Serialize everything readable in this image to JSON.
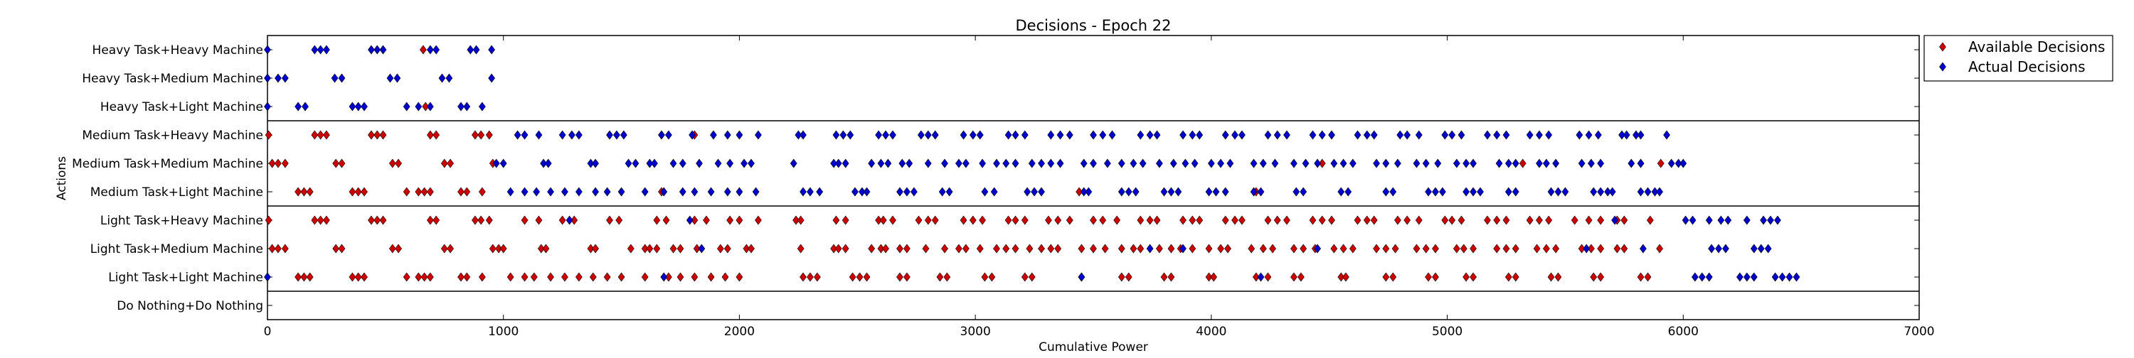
{
  "chart_data": {
    "type": "scatter",
    "title": "Decisions - Epoch 22",
    "xlabel": "Cumulative Power",
    "ylabel": "Actions",
    "xlim": [
      0,
      7000
    ],
    "xticks": [
      0,
      1000,
      2000,
      3000,
      4000,
      5000,
      6000,
      7000
    ],
    "categories": [
      "Heavy Task+Heavy Machine",
      "Heavy Task+Medium Machine",
      "Heavy Task+Light Machine",
      "Medium Task+Heavy Machine",
      "Medium Task+Medium Machine",
      "Medium Task+Light Machine",
      "Light Task+Heavy Machine",
      "Light Task+Medium Machine",
      "Light Task+Light Machine",
      "Do Nothing+Do Nothing"
    ],
    "group_separators_after": [
      2,
      5,
      8
    ],
    "grid": false,
    "legend_position": "upper-right-outside",
    "series": [
      {
        "name": "Available Decisions",
        "color": "#cc0000",
        "points": [
          {
            "cat": "Heavy Task+Heavy Machine",
            "x": [
              660
            ]
          },
          {
            "cat": "Heavy Task+Light Machine",
            "x": [
              670
            ]
          },
          {
            "cat": "Medium Task+Heavy Machine",
            "x": [
              5,
              200,
              225,
              250,
              440,
              465,
              490,
              690,
              715,
              880,
              905,
              940,
              1810
            ]
          },
          {
            "cat": "Medium Task+Medium Machine",
            "x": [
              20,
              45,
              75,
              290,
              315,
              530,
              555,
              750,
              775,
              955,
              4470,
              5320,
              5820,
              5905
            ]
          },
          {
            "cat": "Medium Task+Light Machine",
            "x": [
              130,
              155,
              180,
              360,
              385,
              410,
              590,
              640,
              665,
              690,
              820,
              845,
              910,
              1670,
              3440,
              4190
            ]
          },
          {
            "cat": "Light Task+Heavy Machine",
            "x": [
              5,
              200,
              225,
              250,
              440,
              465,
              490,
              690,
              715,
              880,
              905,
              940,
              1090,
              1150,
              1250,
              1300,
              1450,
              1490,
              1650,
              1690,
              1810,
              1860,
              1960,
              2000,
              2080,
              2240,
              2260,
              2410,
              2450,
              2590,
              2610,
              2650,
              2760,
              2800,
              2830,
              2950,
              2990,
              3030,
              3140,
              3170,
              3210,
              3310,
              3350,
              3400,
              3500,
              3540,
              3600,
              3700,
              3740,
              3770,
              3880,
              3920,
              3950,
              4060,
              4100,
              4130,
              4240,
              4280,
              4320,
              4430,
              4470,
              4510,
              4620,
              4660,
              4690,
              4790,
              4830,
              4880,
              4990,
              5020,
              5060,
              5170,
              5210,
              5250,
              5350,
              5390,
              5430,
              5540,
              5600,
              5650,
              5720,
              5750,
              5860
            ]
          },
          {
            "cat": "Light Task+Medium Machine",
            "x": [
              20,
              45,
              75,
              290,
              315,
              530,
              555,
              750,
              775,
              955,
              980,
              1000,
              1160,
              1180,
              1370,
              1390,
              1540,
              1600,
              1620,
              1650,
              1720,
              1750,
              1820,
              1920,
              1950,
              2030,
              2050,
              2260,
              2400,
              2420,
              2450,
              2560,
              2600,
              2620,
              2680,
              2710,
              2790,
              2870,
              2930,
              2960,
              3020,
              3090,
              3130,
              3170,
              3230,
              3280,
              3320,
              3350,
              3450,
              3500,
              3550,
              3620,
              3670,
              3700,
              3780,
              3830,
              3870,
              3920,
              3990,
              4040,
              4070,
              4170,
              4220,
              4260,
              4350,
              4390,
              4440,
              4520,
              4560,
              4600,
              4700,
              4740,
              4780,
              4870,
              4910,
              4950,
              5040,
              5070,
              5110,
              5210,
              5250,
              5290,
              5380,
              5420,
              5460,
              5570,
              5610,
              5650,
              5720,
              5750,
              5900
            ]
          },
          {
            "cat": "Light Task+Light Machine",
            "x": [
              130,
              155,
              180,
              360,
              385,
              410,
              590,
              640,
              665,
              690,
              820,
              845,
              910,
              1030,
              1090,
              1130,
              1200,
              1260,
              1320,
              1380,
              1440,
              1500,
              1600,
              1700,
              1750,
              1810,
              1880,
              1940,
              2000,
              2270,
              2300,
              2330,
              2480,
              2510,
              2540,
              2680,
              2710,
              2850,
              2880,
              3040,
              3070,
              3210,
              3240,
              3450,
              3620,
              3650,
              3800,
              3830,
              3990,
              4010,
              4190,
              4240,
              4350,
              4380,
              4550,
              4570,
              4740,
              4770,
              4920,
              4950,
              5080,
              5110,
              5260,
              5290,
              5440,
              5470,
              5620,
              5650,
              5820,
              5850
            ]
          }
        ]
      },
      {
        "name": "Actual Decisions",
        "color": "#0000cc",
        "points": [
          {
            "cat": "Heavy Task+Heavy Machine",
            "x": [
              0,
              200,
              225,
              250,
              440,
              465,
              490,
              690,
              715,
              860,
              885,
              950
            ]
          },
          {
            "cat": "Heavy Task+Medium Machine",
            "x": [
              0,
              45,
              75,
              285,
              315,
              520,
              550,
              740,
              770,
              950
            ]
          },
          {
            "cat": "Heavy Task+Light Machine",
            "x": [
              0,
              130,
              160,
              360,
              385,
              410,
              590,
              640,
              690,
              820,
              845,
              910
            ]
          },
          {
            "cat": "Medium Task+Heavy Machine",
            "x": [
              1060,
              1090,
              1150,
              1250,
              1290,
              1320,
              1450,
              1480,
              1510,
              1670,
              1700,
              1800,
              1890,
              1950,
              2000,
              2080,
              2250,
              2270,
              2410,
              2440,
              2470,
              2590,
              2620,
              2650,
              2770,
              2800,
              2830,
              2950,
              2990,
              3020,
              3140,
              3170,
              3210,
              3320,
              3360,
              3400,
              3500,
              3540,
              3580,
              3700,
              3740,
              3770,
              3880,
              3920,
              3950,
              4060,
              4100,
              4130,
              4240,
              4280,
              4320,
              4430,
              4470,
              4510,
              4620,
              4660,
              4690,
              4800,
              4830,
              4880,
              4990,
              5020,
              5060,
              5170,
              5210,
              5250,
              5350,
              5390,
              5430,
              5560,
              5600,
              5640,
              5740,
              5760,
              5800,
              5820,
              5930
            ]
          },
          {
            "cat": "Medium Task+Medium Machine",
            "x": [
              970,
              1000,
              1170,
              1190,
              1370,
              1390,
              1530,
              1560,
              1620,
              1640,
              1720,
              1760,
              1830,
              1910,
              1960,
              2020,
              2050,
              2230,
              2400,
              2420,
              2450,
              2560,
              2600,
              2630,
              2690,
              2720,
              2800,
              2870,
              2930,
              2960,
              3030,
              3090,
              3130,
              3170,
              3240,
              3280,
              3320,
              3360,
              3460,
              3500,
              3560,
              3620,
              3670,
              3710,
              3780,
              3840,
              3890,
              3930,
              4000,
              4040,
              4080,
              4180,
              4220,
              4270,
              4350,
              4400,
              4450,
              4520,
              4560,
              4600,
              4700,
              4740,
              4790,
              4870,
              4910,
              4960,
              5040,
              5080,
              5110,
              5220,
              5260,
              5290,
              5390,
              5420,
              5460,
              5570,
              5610,
              5650,
              5780,
              5820,
              5950,
              5980,
              6000
            ]
          },
          {
            "cat": "Medium Task+Light Machine",
            "x": [
              1030,
              1090,
              1140,
              1200,
              1260,
              1320,
              1390,
              1440,
              1500,
              1600,
              1680,
              1760,
              1810,
              1880,
              1950,
              2000,
              2070,
              2270,
              2300,
              2340,
              2490,
              2520,
              2540,
              2680,
              2710,
              2740,
              2860,
              2890,
              3040,
              3080,
              3220,
              3250,
              3280,
              3460,
              3480,
              3620,
              3650,
              3680,
              3800,
              3830,
              3860,
              3990,
              4020,
              4060,
              4180,
              4210,
              4360,
              4390,
              4550,
              4580,
              4740,
              4770,
              4920,
              4950,
              4980,
              5080,
              5110,
              5140,
              5260,
              5290,
              5440,
              5470,
              5500,
              5620,
              5650,
              5680,
              5700,
              5820,
              5850,
              5880,
              5900
            ]
          },
          {
            "cat": "Light Task+Heavy Machine",
            "x": [
              1280,
              1790,
              5710,
              6010,
              6040,
              6110,
              6160,
              6190,
              6270,
              6340,
              6370,
              6400
            ]
          },
          {
            "cat": "Light Task+Medium Machine",
            "x": [
              1840,
              3740,
              3880,
              4450,
              5590,
              5830,
              6120,
              6150,
              6180,
              6300,
              6330,
              6360
            ]
          },
          {
            "cat": "Light Task+Light Machine",
            "x": [
              0,
              1680,
              3450,
              4210,
              6050,
              6080,
              6110,
              6240,
              6270,
              6300,
              6390,
              6420,
              6450,
              6480
            ]
          }
        ]
      }
    ]
  }
}
